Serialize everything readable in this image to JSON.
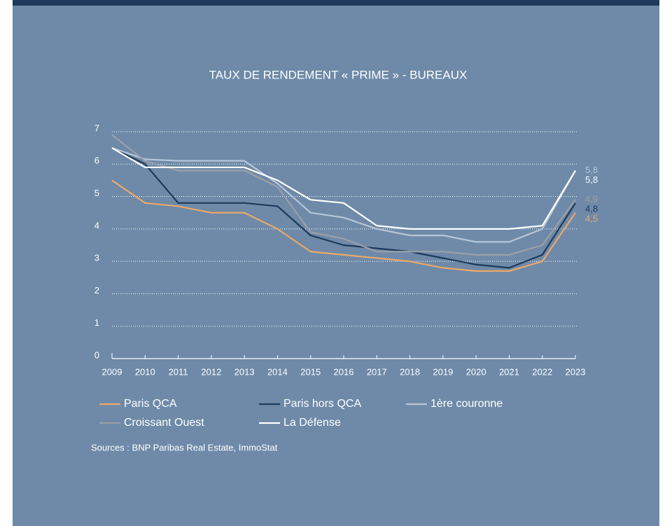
{
  "chart_data": {
    "type": "line",
    "title": "TAUX DE RENDEMENT « PRIME » - BUREAUX",
    "x": [
      2009,
      2010,
      2011,
      2012,
      2013,
      2014,
      2015,
      2016,
      2017,
      2018,
      2019,
      2020,
      2021,
      2022,
      2023
    ],
    "xlim": [
      2009,
      2023
    ],
    "xticks": [
      2009,
      2010,
      2011,
      2012,
      2013,
      2014,
      2015,
      2016,
      2017,
      2018,
      2019,
      2020,
      2021,
      2022,
      2023
    ],
    "ylim": [
      0,
      7
    ],
    "yticks": [
      0,
      1,
      2,
      3,
      4,
      5,
      6,
      7
    ],
    "grid": true,
    "series": [
      {
        "name": "Paris QCA",
        "color": "#eaa86a",
        "values": [
          5.5,
          4.8,
          4.7,
          4.5,
          4.5,
          4.0,
          3.3,
          3.2,
          3.1,
          3.0,
          2.8,
          2.7,
          2.7,
          3.0,
          4.5
        ],
        "value_labels": [
          null,
          null,
          null,
          null,
          null,
          null,
          null,
          null,
          null,
          null,
          null,
          null,
          null,
          null,
          "4,5"
        ]
      },
      {
        "name": "Paris hors QCA",
        "color": "#1d3a5c",
        "values": [
          6.5,
          6.0,
          4.8,
          4.8,
          4.8,
          4.7,
          3.8,
          3.5,
          3.4,
          3.3,
          3.1,
          2.9,
          2.8,
          3.2,
          4.8
        ],
        "value_labels": [
          null,
          null,
          null,
          null,
          null,
          null,
          null,
          null,
          null,
          null,
          null,
          null,
          null,
          null,
          "4,8"
        ]
      },
      {
        "name": "1ère couronne",
        "color": "#b7c6d8",
        "values": [
          6.5,
          6.15,
          6.1,
          6.1,
          6.1,
          5.4,
          4.5,
          4.35,
          4.0,
          3.8,
          3.8,
          3.6,
          3.6,
          4.0,
          5.8
        ],
        "value_labels": [
          null,
          null,
          null,
          null,
          null,
          null,
          null,
          null,
          null,
          null,
          null,
          null,
          null,
          null,
          "5,8"
        ]
      },
      {
        "name": "Croissant Ouest",
        "color": "#9aa0a8",
        "values": [
          6.9,
          6.1,
          5.8,
          5.8,
          5.8,
          5.3,
          3.9,
          3.7,
          3.3,
          3.3,
          3.3,
          3.2,
          3.2,
          3.5,
          4.9
        ],
        "value_labels": [
          null,
          null,
          null,
          null,
          null,
          null,
          null,
          null,
          null,
          null,
          null,
          null,
          null,
          null,
          "4,9"
        ]
      },
      {
        "name": "La Défense",
        "color": "#ffffff",
        "values": [
          6.5,
          5.9,
          5.9,
          5.9,
          5.9,
          5.5,
          4.9,
          4.8,
          4.1,
          4.0,
          4.0,
          4.0,
          4.0,
          4.1,
          5.8
        ],
        "value_labels": [
          null,
          null,
          null,
          null,
          null,
          null,
          null,
          null,
          null,
          null,
          null,
          null,
          null,
          null,
          "5,8"
        ]
      }
    ],
    "source": "Sources : BNP Paribas Real Estate, ImmoStat"
  }
}
